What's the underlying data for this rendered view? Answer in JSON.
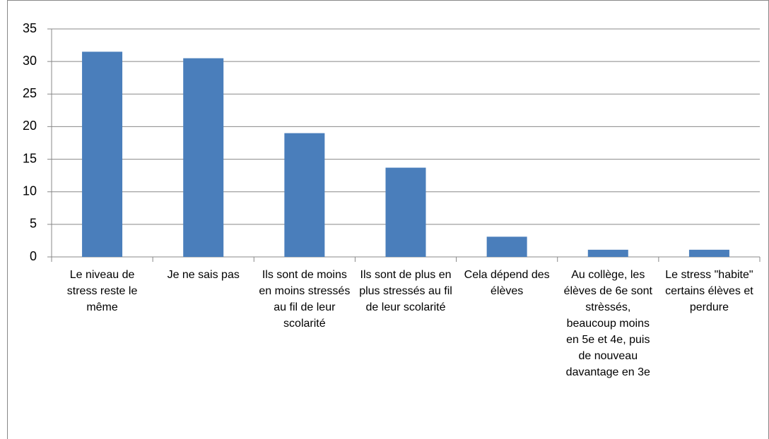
{
  "chart_data": {
    "type": "bar",
    "categories": [
      "Le niveau de stress reste le même",
      "Je ne sais pas",
      "Ils sont de moins en moins stressés au fil de leur scolarité",
      "Ils sont de plus en plus stressés au fil de leur scolarité",
      "Cela dépend des élèves",
      "Au collège, les élèves de 6e sont strèssés, beaucoup moins en 5e et 4e, puis de nouveau davantage en 3e",
      "Le stress \"habite\" certains élèves et perdure"
    ],
    "values": [
      31.5,
      30.5,
      19,
      13.7,
      3.1,
      1.1,
      1.1
    ],
    "color": "#4a7ebb",
    "ylim": [
      0,
      35
    ],
    "yticks": [
      0,
      5,
      10,
      15,
      20,
      25,
      30,
      35
    ],
    "grid": true
  }
}
